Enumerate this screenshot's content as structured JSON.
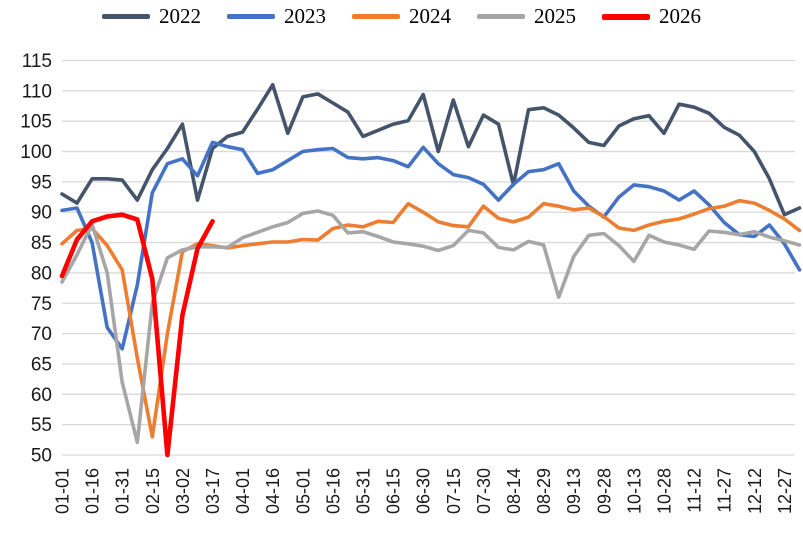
{
  "chart_data": {
    "type": "line",
    "title": "",
    "xlabel": "",
    "ylabel": "",
    "ylim": [
      50,
      115
    ],
    "y_ticks": [
      50,
      55,
      60,
      65,
      70,
      75,
      80,
      85,
      90,
      95,
      100,
      105,
      110,
      115
    ],
    "grid": "horizontal",
    "legend_position": "top",
    "x_labels": [
      "01-01",
      "01-16",
      "01-31",
      "02-15",
      "03-02",
      "03-17",
      "04-01",
      "04-16",
      "05-01",
      "05-16",
      "05-31",
      "06-15",
      "06-30",
      "07-15",
      "07-30",
      "08-14",
      "08-29",
      "09-13",
      "09-28",
      "10-13",
      "10-28",
      "11-12",
      "11-27",
      "12-12",
      "12-27"
    ],
    "points_per_label_interval": 2,
    "series": [
      {
        "name": "2022",
        "color": "#44546A",
        "width": 3.6,
        "values": [
          93,
          91.5,
          95.5,
          95.5,
          95.3,
          92,
          97,
          100.5,
          104.5,
          92,
          100.5,
          102.5,
          103.2,
          107,
          111,
          103,
          109,
          109.5,
          108,
          106.5,
          102.5,
          103.5,
          104.5,
          105.1,
          109.4,
          100,
          108.5,
          100.8,
          106,
          104.5,
          94.5,
          106.9,
          107.2,
          106,
          103.9,
          101.5,
          101,
          104.2,
          105.4,
          105.9,
          103,
          107.8,
          107.3,
          106.3,
          104,
          102.7,
          100,
          95.5,
          89.6,
          90.7
        ]
      },
      {
        "name": "2023",
        "color": "#4472C4",
        "width": 3.6,
        "values": [
          90.3,
          90.7,
          85,
          71,
          67.5,
          78,
          93.2,
          98,
          98.8,
          96,
          101.5,
          100.8,
          100.3,
          96.4,
          97,
          98.5,
          100,
          100.3,
          100.5,
          99,
          98.8,
          99,
          98.5,
          97.5,
          100.7,
          98,
          96.2,
          95.7,
          94.6,
          92,
          94.6,
          96.7,
          97,
          98,
          93.5,
          91,
          89.2,
          92.5,
          94.5,
          94.2,
          93.5,
          92,
          93.5,
          91.2,
          88.3,
          86.3,
          86,
          87.9,
          84.8,
          80.5
        ]
      },
      {
        "name": "2024",
        "color": "#ED7D31",
        "width": 3.6,
        "values": [
          84.8,
          87,
          87.3,
          84.5,
          80.5,
          66,
          53,
          70,
          83.5,
          84.8,
          84.5,
          84.1,
          84.5,
          84.8,
          85.1,
          85.1,
          85.5,
          85.4,
          87.3,
          87.9,
          87.6,
          88.5,
          88.3,
          91.4,
          90,
          88.4,
          87.8,
          87.6,
          91,
          89,
          88.4,
          89.2,
          91.4,
          91,
          90.4,
          90.7,
          89.3,
          87.4,
          87,
          87.9,
          88.5,
          88.9,
          89.7,
          90.6,
          91,
          91.9,
          91.5,
          90.3,
          88.9,
          87
        ]
      },
      {
        "name": "2025",
        "color": "#A6A6A6",
        "width": 3.6,
        "values": [
          78.5,
          83,
          88,
          80,
          62,
          52.1,
          75,
          82.5,
          83.8,
          84.3,
          84.3,
          84.2,
          85.8,
          86.7,
          87.6,
          88.3,
          89.8,
          90.2,
          89.5,
          86.6,
          86.8,
          86,
          85.1,
          84.8,
          84.4,
          83.7,
          84.5,
          87,
          86.6,
          84.2,
          83.8,
          85.2,
          84.6,
          76,
          82.7,
          86.2,
          86.5,
          84.5,
          81.9,
          86.2,
          85.1,
          84.6,
          83.9,
          86.9,
          86.7,
          86.3,
          86.8,
          85.9,
          85.3,
          84.6
        ]
      },
      {
        "name": "2026",
        "color": "#FF0000",
        "width": 4.6,
        "values": [
          79.5,
          85.5,
          88.5,
          89.3,
          89.6,
          88.8,
          79,
          50,
          73,
          84,
          88.5
        ]
      }
    ]
  },
  "legend": {
    "items": [
      "2022",
      "2023",
      "2024",
      "2025",
      "2026"
    ]
  }
}
